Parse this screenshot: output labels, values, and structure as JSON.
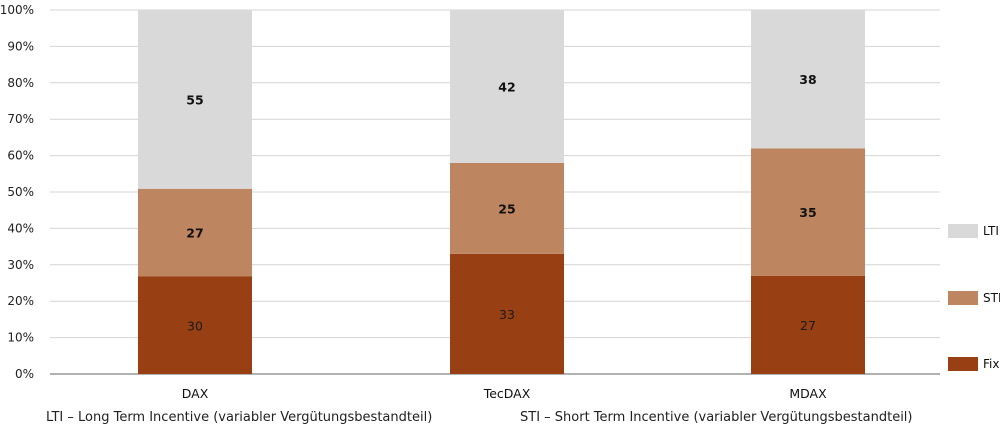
{
  "chart_data": {
    "type": "bar",
    "stacked": true,
    "normalized": true,
    "categories": [
      "DAX",
      "TecDAX",
      "MDAX"
    ],
    "series": [
      {
        "name": "Fix",
        "values": [
          30,
          33,
          27
        ],
        "color": "#983f14"
      },
      {
        "name": "STI",
        "values": [
          27,
          25,
          35
        ],
        "color": "#bd8660"
      },
      {
        "name": "LTI",
        "values": [
          55,
          42,
          38
        ],
        "color": "#d9d9d9"
      }
    ],
    "y_ticks": [
      "0%",
      "10%",
      "20%",
      "30%",
      "40%",
      "50%",
      "60%",
      "70%",
      "80%",
      "90%",
      "100%"
    ],
    "ylim": [
      0,
      100
    ],
    "grid": true,
    "legend": {
      "placement": "right",
      "order": [
        "LTI",
        "STI",
        "Fix"
      ]
    }
  },
  "footnotes": {
    "lti": "LTI – Long Term Incentive (variabler Vergütungsbestandteil)",
    "sti": "STI – Short Term Incentive (variabler Vergütungsbestandteil)"
  }
}
